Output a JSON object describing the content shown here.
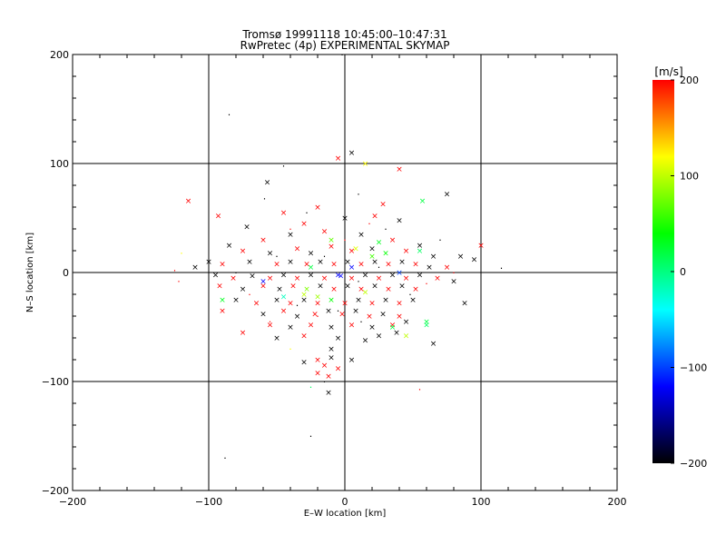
{
  "chart_data": {
    "type": "scatter",
    "title": "Tromsø 19991118 10:45:00–10:47:31",
    "subtitle": "RwPretec (4p) EXPERIMENTAL SKYMAP",
    "xlabel": "E–W location [km]",
    "ylabel": "N–S location [km]",
    "xlim": [
      -200,
      200
    ],
    "ylim": [
      -200,
      200
    ],
    "xticks": [
      "−200",
      "−100",
      "0",
      "100",
      "200"
    ],
    "yticks": [
      "−200",
      "−100",
      "0",
      "100",
      "200"
    ],
    "grid": true,
    "colorbar": {
      "label": "[m/s]",
      "range": [
        -200,
        200
      ],
      "ticks": [
        "200",
        "100",
        "0",
        "−100",
        "−200"
      ],
      "colors": [
        "#000000",
        "#0000ff",
        "#00ffff",
        "#00ff00",
        "#ffff00",
        "#ff0000"
      ]
    },
    "markers": {
      "cross": "×",
      "dot": "·"
    },
    "points": [
      {
        "x": -85,
        "y": 145,
        "v": -200,
        "m": "dot"
      },
      {
        "x": -2,
        "y": 200,
        "v": -200,
        "m": "dot"
      },
      {
        "x": 5,
        "y": 110,
        "v": -200,
        "m": "cross"
      },
      {
        "x": 15,
        "y": 100,
        "v": 120,
        "m": "cross"
      },
      {
        "x": -5,
        "y": 105,
        "v": 200,
        "m": "cross"
      },
      {
        "x": 40,
        "y": 95,
        "v": 200,
        "m": "cross"
      },
      {
        "x": -57,
        "y": 83,
        "v": -200,
        "m": "cross"
      },
      {
        "x": -45,
        "y": 98,
        "v": -200,
        "m": "dot"
      },
      {
        "x": -115,
        "y": 66,
        "v": 200,
        "m": "cross"
      },
      {
        "x": 75,
        "y": 72,
        "v": -200,
        "m": "cross"
      },
      {
        "x": 57,
        "y": 66,
        "v": 20,
        "m": "cross"
      },
      {
        "x": -59,
        "y": 68,
        "v": -200,
        "m": "dot"
      },
      {
        "x": -45,
        "y": 55,
        "v": 200,
        "m": "cross"
      },
      {
        "x": -20,
        "y": 60,
        "v": 200,
        "m": "cross"
      },
      {
        "x": 28,
        "y": 63,
        "v": 200,
        "m": "cross"
      },
      {
        "x": 10,
        "y": 72,
        "v": -200,
        "m": "dot"
      },
      {
        "x": -93,
        "y": 52,
        "v": 200,
        "m": "cross"
      },
      {
        "x": -72,
        "y": 42,
        "v": -200,
        "m": "cross"
      },
      {
        "x": -30,
        "y": 45,
        "v": 200,
        "m": "cross"
      },
      {
        "x": 0,
        "y": 50,
        "v": -200,
        "m": "cross"
      },
      {
        "x": 22,
        "y": 52,
        "v": 200,
        "m": "cross"
      },
      {
        "x": 40,
        "y": 48,
        "v": -200,
        "m": "cross"
      },
      {
        "x": -60,
        "y": 30,
        "v": 200,
        "m": "cross"
      },
      {
        "x": -40,
        "y": 35,
        "v": -200,
        "m": "cross"
      },
      {
        "x": -15,
        "y": 38,
        "v": 200,
        "m": "cross"
      },
      {
        "x": 12,
        "y": 35,
        "v": -200,
        "m": "cross"
      },
      {
        "x": 35,
        "y": 30,
        "v": 200,
        "m": "cross"
      },
      {
        "x": 55,
        "y": 25,
        "v": -200,
        "m": "cross"
      },
      {
        "x": -85,
        "y": 25,
        "v": -200,
        "m": "cross"
      },
      {
        "x": -75,
        "y": 20,
        "v": 200,
        "m": "cross"
      },
      {
        "x": -55,
        "y": 18,
        "v": -200,
        "m": "cross"
      },
      {
        "x": -35,
        "y": 22,
        "v": 200,
        "m": "cross"
      },
      {
        "x": -25,
        "y": 18,
        "v": -200,
        "m": "cross"
      },
      {
        "x": -10,
        "y": 24,
        "v": 200,
        "m": "cross"
      },
      {
        "x": 5,
        "y": 20,
        "v": 200,
        "m": "cross"
      },
      {
        "x": 20,
        "y": 22,
        "v": -200,
        "m": "cross"
      },
      {
        "x": 30,
        "y": 18,
        "v": 40,
        "m": "cross"
      },
      {
        "x": 45,
        "y": 20,
        "v": 200,
        "m": "cross"
      },
      {
        "x": 65,
        "y": 15,
        "v": -200,
        "m": "cross"
      },
      {
        "x": -100,
        "y": 10,
        "v": -200,
        "m": "cross"
      },
      {
        "x": -90,
        "y": 8,
        "v": 200,
        "m": "cross"
      },
      {
        "x": -70,
        "y": 10,
        "v": -200,
        "m": "cross"
      },
      {
        "x": -50,
        "y": 8,
        "v": 200,
        "m": "cross"
      },
      {
        "x": -40,
        "y": 10,
        "v": -200,
        "m": "cross"
      },
      {
        "x": -28,
        "y": 8,
        "v": 200,
        "m": "cross"
      },
      {
        "x": -18,
        "y": 10,
        "v": -200,
        "m": "cross"
      },
      {
        "x": -8,
        "y": 8,
        "v": 200,
        "m": "cross"
      },
      {
        "x": 2,
        "y": 10,
        "v": -200,
        "m": "cross"
      },
      {
        "x": 12,
        "y": 8,
        "v": 200,
        "m": "cross"
      },
      {
        "x": 22,
        "y": 10,
        "v": -200,
        "m": "cross"
      },
      {
        "x": 32,
        "y": 8,
        "v": 200,
        "m": "cross"
      },
      {
        "x": 42,
        "y": 10,
        "v": -200,
        "m": "cross"
      },
      {
        "x": 52,
        "y": 8,
        "v": 200,
        "m": "cross"
      },
      {
        "x": 62,
        "y": 5,
        "v": -200,
        "m": "cross"
      },
      {
        "x": 75,
        "y": 5,
        "v": 200,
        "m": "cross"
      },
      {
        "x": 85,
        "y": 15,
        "v": -200,
        "m": "cross"
      },
      {
        "x": 95,
        "y": 12,
        "v": -200,
        "m": "cross"
      },
      {
        "x": 100,
        "y": 25,
        "v": 200,
        "m": "cross"
      },
      {
        "x": 115,
        "y": 4,
        "v": -200,
        "m": "dot"
      },
      {
        "x": -110,
        "y": 5,
        "v": -200,
        "m": "cross"
      },
      {
        "x": -125,
        "y": 2,
        "v": 200,
        "m": "dot"
      },
      {
        "x": -95,
        "y": -2,
        "v": -200,
        "m": "cross"
      },
      {
        "x": -82,
        "y": -5,
        "v": 200,
        "m": "cross"
      },
      {
        "x": -68,
        "y": -3,
        "v": -200,
        "m": "cross"
      },
      {
        "x": -55,
        "y": -5,
        "v": 200,
        "m": "cross"
      },
      {
        "x": -45,
        "y": -2,
        "v": -200,
        "m": "cross"
      },
      {
        "x": -35,
        "y": -5,
        "v": 200,
        "m": "cross"
      },
      {
        "x": -25,
        "y": -2,
        "v": -200,
        "m": "cross"
      },
      {
        "x": -15,
        "y": -5,
        "v": 200,
        "m": "cross"
      },
      {
        "x": -5,
        "y": -2,
        "v": -120,
        "m": "cross"
      },
      {
        "x": 5,
        "y": -5,
        "v": 200,
        "m": "cross"
      },
      {
        "x": 15,
        "y": -2,
        "v": -200,
        "m": "cross"
      },
      {
        "x": 25,
        "y": -5,
        "v": 200,
        "m": "cross"
      },
      {
        "x": 35,
        "y": -2,
        "v": -200,
        "m": "cross"
      },
      {
        "x": 45,
        "y": -5,
        "v": 200,
        "m": "cross"
      },
      {
        "x": 55,
        "y": -2,
        "v": -200,
        "m": "cross"
      },
      {
        "x": 68,
        "y": -5,
        "v": 200,
        "m": "cross"
      },
      {
        "x": 80,
        "y": -8,
        "v": -200,
        "m": "cross"
      },
      {
        "x": -92,
        "y": -12,
        "v": 200,
        "m": "cross"
      },
      {
        "x": -75,
        "y": -15,
        "v": -200,
        "m": "cross"
      },
      {
        "x": -60,
        "y": -12,
        "v": 200,
        "m": "cross"
      },
      {
        "x": -48,
        "y": -15,
        "v": -200,
        "m": "cross"
      },
      {
        "x": -38,
        "y": -12,
        "v": 200,
        "m": "cross"
      },
      {
        "x": -28,
        "y": -15,
        "v": 80,
        "m": "cross"
      },
      {
        "x": -18,
        "y": -12,
        "v": -200,
        "m": "cross"
      },
      {
        "x": -8,
        "y": -15,
        "v": 200,
        "m": "cross"
      },
      {
        "x": 2,
        "y": -12,
        "v": -200,
        "m": "cross"
      },
      {
        "x": 12,
        "y": -15,
        "v": 200,
        "m": "cross"
      },
      {
        "x": 22,
        "y": -12,
        "v": -200,
        "m": "cross"
      },
      {
        "x": 32,
        "y": -15,
        "v": 200,
        "m": "cross"
      },
      {
        "x": 42,
        "y": -12,
        "v": -200,
        "m": "cross"
      },
      {
        "x": 52,
        "y": -15,
        "v": 200,
        "m": "cross"
      },
      {
        "x": 88,
        "y": -28,
        "v": -200,
        "m": "cross"
      },
      {
        "x": -80,
        "y": -25,
        "v": -200,
        "m": "cross"
      },
      {
        "x": -65,
        "y": -28,
        "v": 200,
        "m": "cross"
      },
      {
        "x": -50,
        "y": -25,
        "v": -200,
        "m": "cross"
      },
      {
        "x": -40,
        "y": -28,
        "v": 200,
        "m": "cross"
      },
      {
        "x": -30,
        "y": -25,
        "v": -200,
        "m": "cross"
      },
      {
        "x": -20,
        "y": -28,
        "v": 200,
        "m": "cross"
      },
      {
        "x": -10,
        "y": -25,
        "v": 40,
        "m": "cross"
      },
      {
        "x": 0,
        "y": -28,
        "v": 200,
        "m": "cross"
      },
      {
        "x": 10,
        "y": -25,
        "v": -200,
        "m": "cross"
      },
      {
        "x": 20,
        "y": -28,
        "v": 200,
        "m": "cross"
      },
      {
        "x": 30,
        "y": -25,
        "v": -200,
        "m": "cross"
      },
      {
        "x": 40,
        "y": -28,
        "v": 200,
        "m": "cross"
      },
      {
        "x": 50,
        "y": -25,
        "v": -200,
        "m": "cross"
      },
      {
        "x": -90,
        "y": -35,
        "v": 200,
        "m": "cross"
      },
      {
        "x": -60,
        "y": -38,
        "v": -200,
        "m": "cross"
      },
      {
        "x": -45,
        "y": -35,
        "v": 200,
        "m": "cross"
      },
      {
        "x": -35,
        "y": -40,
        "v": -200,
        "m": "cross"
      },
      {
        "x": -22,
        "y": -38,
        "v": 200,
        "m": "cross"
      },
      {
        "x": -12,
        "y": -35,
        "v": -200,
        "m": "cross"
      },
      {
        "x": -2,
        "y": -38,
        "v": 200,
        "m": "cross"
      },
      {
        "x": 8,
        "y": -35,
        "v": -200,
        "m": "cross"
      },
      {
        "x": 18,
        "y": -40,
        "v": 200,
        "m": "cross"
      },
      {
        "x": 28,
        "y": -38,
        "v": -200,
        "m": "cross"
      },
      {
        "x": 40,
        "y": -40,
        "v": 200,
        "m": "cross"
      },
      {
        "x": -55,
        "y": -48,
        "v": 200,
        "m": "cross"
      },
      {
        "x": -40,
        "y": -50,
        "v": -200,
        "m": "cross"
      },
      {
        "x": -25,
        "y": -48,
        "v": 200,
        "m": "cross"
      },
      {
        "x": -10,
        "y": -50,
        "v": -200,
        "m": "cross"
      },
      {
        "x": 5,
        "y": -48,
        "v": 200,
        "m": "cross"
      },
      {
        "x": 20,
        "y": -50,
        "v": -200,
        "m": "cross"
      },
      {
        "x": 35,
        "y": -48,
        "v": 200,
        "m": "cross"
      },
      {
        "x": 45,
        "y": -45,
        "v": -200,
        "m": "cross"
      },
      {
        "x": 60,
        "y": -48,
        "v": 10,
        "m": "cross"
      },
      {
        "x": -75,
        "y": -55,
        "v": 200,
        "m": "cross"
      },
      {
        "x": -50,
        "y": -60,
        "v": -200,
        "m": "cross"
      },
      {
        "x": -30,
        "y": -58,
        "v": 200,
        "m": "cross"
      },
      {
        "x": -5,
        "y": -60,
        "v": -200,
        "m": "cross"
      },
      {
        "x": 25,
        "y": -58,
        "v": -200,
        "m": "cross"
      },
      {
        "x": 38,
        "y": -55,
        "v": -200,
        "m": "cross"
      },
      {
        "x": -40,
        "y": -70,
        "v": 120,
        "m": "dot"
      },
      {
        "x": -10,
        "y": -70,
        "v": -200,
        "m": "cross"
      },
      {
        "x": 15,
        "y": -62,
        "v": -200,
        "m": "cross"
      },
      {
        "x": 65,
        "y": -65,
        "v": -200,
        "m": "cross"
      },
      {
        "x": -30,
        "y": -82,
        "v": -200,
        "m": "cross"
      },
      {
        "x": -20,
        "y": -80,
        "v": 200,
        "m": "cross"
      },
      {
        "x": -15,
        "y": -85,
        "v": 200,
        "m": "cross"
      },
      {
        "x": -10,
        "y": -78,
        "v": -200,
        "m": "cross"
      },
      {
        "x": -5,
        "y": -88,
        "v": 200,
        "m": "cross"
      },
      {
        "x": -20,
        "y": -92,
        "v": 200,
        "m": "cross"
      },
      {
        "x": -12,
        "y": -95,
        "v": 200,
        "m": "cross"
      },
      {
        "x": 5,
        "y": -80,
        "v": -200,
        "m": "cross"
      },
      {
        "x": -25,
        "y": -105,
        "v": 10,
        "m": "dot"
      },
      {
        "x": -12,
        "y": -110,
        "v": -200,
        "m": "cross"
      },
      {
        "x": -15,
        "y": -100,
        "v": -200,
        "m": "dot"
      },
      {
        "x": 55,
        "y": -107,
        "v": 200,
        "m": "dot"
      },
      {
        "x": -25,
        "y": -150,
        "v": -200,
        "m": "dot"
      },
      {
        "x": -88,
        "y": -170,
        "v": -200,
        "m": "dot"
      },
      {
        "x": -120,
        "y": 18,
        "v": 120,
        "m": "dot"
      },
      {
        "x": -122,
        "y": -8,
        "v": 200,
        "m": "dot"
      },
      {
        "x": -90,
        "y": -25,
        "v": 30,
        "m": "cross"
      },
      {
        "x": 35,
        "y": -50,
        "v": 20,
        "m": "cross"
      },
      {
        "x": 45,
        "y": -58,
        "v": 100,
        "m": "cross"
      },
      {
        "x": 60,
        "y": -45,
        "v": 20,
        "m": "cross"
      },
      {
        "x": -30,
        "y": -20,
        "v": 100,
        "m": "cross"
      },
      {
        "x": -20,
        "y": -22,
        "v": 90,
        "m": "cross"
      },
      {
        "x": 5,
        "y": 5,
        "v": -120,
        "m": "cross"
      },
      {
        "x": -3,
        "y": -3,
        "v": -120,
        "m": "cross"
      },
      {
        "x": 20,
        "y": 15,
        "v": 60,
        "m": "cross"
      },
      {
        "x": -10,
        "y": 30,
        "v": 70,
        "m": "cross"
      },
      {
        "x": 15,
        "y": -18,
        "v": 100,
        "m": "cross"
      },
      {
        "x": 25,
        "y": 28,
        "v": 30,
        "m": "cross"
      },
      {
        "x": -25,
        "y": 5,
        "v": 20,
        "m": "cross"
      },
      {
        "x": 8,
        "y": 22,
        "v": 110,
        "m": "cross"
      },
      {
        "x": -45,
        "y": -22,
        "v": -20,
        "m": "cross"
      },
      {
        "x": 40,
        "y": 0,
        "v": -100,
        "m": "cross"
      },
      {
        "x": -60,
        "y": -8,
        "v": -120,
        "m": "cross"
      },
      {
        "x": 55,
        "y": 20,
        "v": 10,
        "m": "cross"
      },
      {
        "x": -35,
        "y": -30,
        "v": -200,
        "m": "dot"
      },
      {
        "x": -15,
        "y": 15,
        "v": -200,
        "m": "dot"
      },
      {
        "x": 10,
        "y": -8,
        "v": -200,
        "m": "dot"
      },
      {
        "x": 25,
        "y": 5,
        "v": -200,
        "m": "dot"
      },
      {
        "x": -50,
        "y": 15,
        "v": -200,
        "m": "dot"
      },
      {
        "x": 48,
        "y": -20,
        "v": -200,
        "m": "dot"
      },
      {
        "x": -70,
        "y": -20,
        "v": 200,
        "m": "dot"
      },
      {
        "x": 70,
        "y": 30,
        "v": -200,
        "m": "dot"
      },
      {
        "x": -40,
        "y": 40,
        "v": 200,
        "m": "dot"
      },
      {
        "x": 30,
        "y": 40,
        "v": -200,
        "m": "dot"
      },
      {
        "x": -20,
        "y": -40,
        "v": 200,
        "m": "dot"
      },
      {
        "x": 0,
        "y": 30,
        "v": 200,
        "m": "dot"
      },
      {
        "x": -5,
        "y": -35,
        "v": -200,
        "m": "dot"
      },
      {
        "x": 60,
        "y": -10,
        "v": 200,
        "m": "dot"
      },
      {
        "x": -80,
        "y": 0,
        "v": -200,
        "m": "dot"
      },
      {
        "x": 80,
        "y": 0,
        "v": 200,
        "m": "dot"
      },
      {
        "x": 18,
        "y": 45,
        "v": 200,
        "m": "dot"
      },
      {
        "x": -28,
        "y": 55,
        "v": -200,
        "m": "dot"
      },
      {
        "x": 12,
        "y": -45,
        "v": -200,
        "m": "dot"
      },
      {
        "x": -55,
        "y": -45,
        "v": 200,
        "m": "dot"
      }
    ]
  }
}
